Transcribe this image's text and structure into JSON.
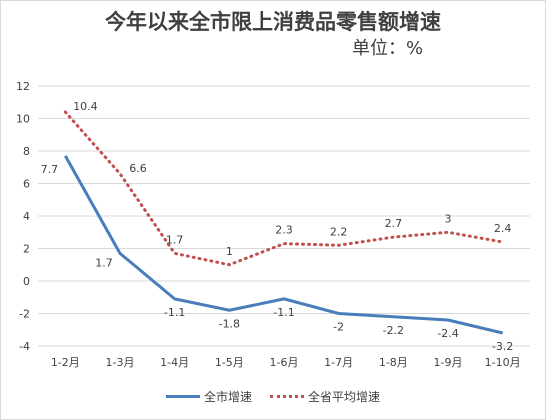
{
  "title": "今年以来全市限上消费品零售额增速",
  "unit_label": "单位：%",
  "colors": {
    "series_city": "#4a7ebb",
    "series_province": "#c0504d",
    "grid": "#d9d9d9",
    "text": "#404040"
  },
  "chart_data": {
    "type": "line",
    "title": "今年以来全市限上消费品零售额增速",
    "categories": [
      "1-2月",
      "1-3月",
      "1-4月",
      "1-5月",
      "1-6月",
      "1-7月",
      "1-8月",
      "1-9月",
      "1-10月"
    ],
    "series": [
      {
        "name": "全市增速",
        "values": [
          7.7,
          1.7,
          -1.1,
          -1.8,
          -1.1,
          -2,
          -2.2,
          -2.4,
          -3.2
        ],
        "labels": [
          "7.7",
          "1.7",
          "-1.1",
          "-1.8",
          "-1.1",
          "-2",
          "-2.2",
          "-2.4",
          "-3.2"
        ],
        "style": "solid"
      },
      {
        "name": "全省平均增速",
        "values": [
          10.4,
          6.6,
          1.7,
          1,
          2.3,
          2.2,
          2.7,
          3,
          2.4
        ],
        "labels": [
          "10.4",
          "6.6",
          "1.7",
          "1",
          "2.3",
          "2.2",
          "2.7",
          "3",
          "2.4"
        ],
        "style": "dotted"
      }
    ],
    "yticks": [
      -4,
      -2,
      0,
      2,
      4,
      6,
      8,
      10,
      12
    ],
    "ylim": [
      -4,
      12
    ],
    "grid": "horizontal",
    "legend": "bottom"
  }
}
